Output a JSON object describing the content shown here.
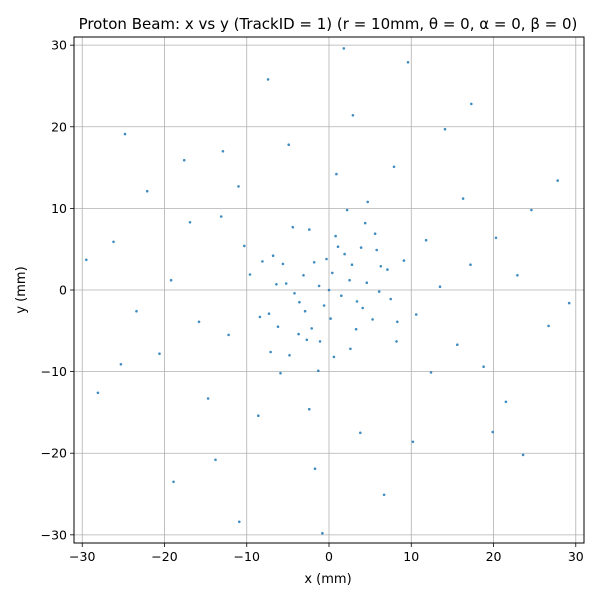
{
  "chart_data": {
    "type": "scatter",
    "title": "Proton Beam: x vs y (TrackID = 1) (r = 10mm, θ = 0, α = 0, β = 0)",
    "xlabel": "x (mm)",
    "ylabel": "y (mm)",
    "xlim": [
      -31,
      31
    ],
    "ylim": [
      -31,
      31
    ],
    "xticks": [
      -30,
      -20,
      -10,
      0,
      10,
      20,
      30
    ],
    "yticks": [
      -30,
      -20,
      -10,
      0,
      10,
      20,
      30
    ],
    "xtick_labels": [
      "−30",
      "−20",
      "−10",
      "0",
      "10",
      "20",
      "30"
    ],
    "ytick_labels": [
      "−30",
      "−20",
      "−10",
      "0",
      "10",
      "20",
      "30"
    ],
    "grid": true,
    "legend": false,
    "color": "#1f77b4",
    "series": [
      {
        "points": [
          [
            0.0,
            0.0
          ],
          [
            2.5,
            1.2
          ],
          [
            -1.8,
            3.4
          ],
          [
            4.1,
            -2.2
          ],
          [
            -3.6,
            -1.5
          ],
          [
            1.1,
            5.3
          ],
          [
            -5.2,
            0.8
          ],
          [
            6.3,
            2.9
          ],
          [
            -2.7,
            -6.1
          ],
          [
            3.3,
            -4.8
          ],
          [
            -6.8,
            4.2
          ],
          [
            7.5,
            -1.1
          ],
          [
            0.6,
            -8.2
          ],
          [
            -8.4,
            -3.3
          ],
          [
            5.6,
            6.9
          ],
          [
            -4.4,
            7.7
          ],
          [
            9.1,
            3.6
          ],
          [
            -9.6,
            1.9
          ],
          [
            2.2,
            9.8
          ],
          [
            -1.3,
            -9.9
          ],
          [
            8.2,
            -6.3
          ],
          [
            -7.1,
            -7.6
          ],
          [
            10.6,
            -3.0
          ],
          [
            -10.3,
            5.4
          ],
          [
            4.7,
            10.8
          ],
          [
            -5.9,
            -10.2
          ],
          [
            11.8,
            6.1
          ],
          [
            -12.2,
            -5.5
          ],
          [
            13.5,
            0.4
          ],
          [
            -13.1,
            9.0
          ],
          [
            0.9,
            14.2
          ],
          [
            -2.4,
            -14.6
          ],
          [
            12.4,
            -10.1
          ],
          [
            -11.0,
            12.7
          ],
          [
            15.6,
            -6.7
          ],
          [
            -15.8,
            -3.9
          ],
          [
            7.9,
            15.1
          ],
          [
            -8.6,
            -15.4
          ],
          [
            17.2,
            3.1
          ],
          [
            -16.9,
            8.3
          ],
          [
            3.8,
            -17.5
          ],
          [
            -4.9,
            17.8
          ],
          [
            16.3,
            11.2
          ],
          [
            -14.7,
            -13.3
          ],
          [
            18.8,
            -9.4
          ],
          [
            -19.2,
            1.2
          ],
          [
            10.2,
            -18.6
          ],
          [
            -12.9,
            17.0
          ],
          [
            20.3,
            6.4
          ],
          [
            -20.6,
            -7.8
          ],
          [
            2.9,
            21.4
          ],
          [
            -1.7,
            -21.9
          ],
          [
            21.5,
            -13.7
          ],
          [
            -17.6,
            15.9
          ],
          [
            22.9,
            1.8
          ],
          [
            -23.4,
            -2.6
          ],
          [
            14.1,
            19.7
          ],
          [
            -13.8,
            -20.8
          ],
          [
            19.9,
            -17.4
          ],
          [
            -22.1,
            12.1
          ],
          [
            24.6,
            9.8
          ],
          [
            -25.3,
            -9.1
          ],
          [
            6.7,
            -25.1
          ],
          [
            -7.4,
            25.8
          ],
          [
            26.7,
            -4.4
          ],
          [
            -26.2,
            5.9
          ],
          [
            17.3,
            22.8
          ],
          [
            -18.9,
            -23.5
          ],
          [
            27.8,
            13.4
          ],
          [
            -28.1,
            -12.6
          ],
          [
            9.6,
            27.9
          ],
          [
            -10.9,
            -28.4
          ],
          [
            29.2,
            -1.6
          ],
          [
            -29.5,
            3.7
          ],
          [
            1.8,
            29.6
          ],
          [
            -0.8,
            -29.8
          ],
          [
            23.6,
            -20.2
          ],
          [
            -24.8,
            19.1
          ],
          [
            0.4,
            2.1
          ],
          [
            -0.6,
            -1.9
          ],
          [
            1.5,
            -0.7
          ],
          [
            -1.2,
            0.5
          ],
          [
            2.8,
            3.1
          ],
          [
            -2.9,
            -2.6
          ],
          [
            3.4,
            -1.4
          ],
          [
            -3.1,
            1.8
          ],
          [
            0.2,
            -3.5
          ],
          [
            -0.3,
            3.8
          ],
          [
            4.6,
            0.9
          ],
          [
            -4.2,
            -0.4
          ],
          [
            1.9,
            4.4
          ],
          [
            -2.1,
            -4.7
          ],
          [
            5.3,
            -3.6
          ],
          [
            -5.6,
            3.2
          ],
          [
            3.9,
            5.2
          ],
          [
            -3.7,
            -5.4
          ],
          [
            6.1,
            -0.2
          ],
          [
            -6.4,
            0.7
          ],
          [
            0.8,
            6.6
          ],
          [
            -1.1,
            -6.3
          ],
          [
            5.8,
            4.9
          ],
          [
            -6.2,
            -4.5
          ],
          [
            7.1,
            2.5
          ],
          [
            -7.3,
            -2.9
          ],
          [
            2.6,
            -7.2
          ],
          [
            -2.4,
            7.4
          ],
          [
            8.3,
            -3.9
          ],
          [
            -8.1,
            3.5
          ],
          [
            4.4,
            8.2
          ],
          [
            -4.8,
            -8.0
          ]
        ]
      }
    ]
  }
}
